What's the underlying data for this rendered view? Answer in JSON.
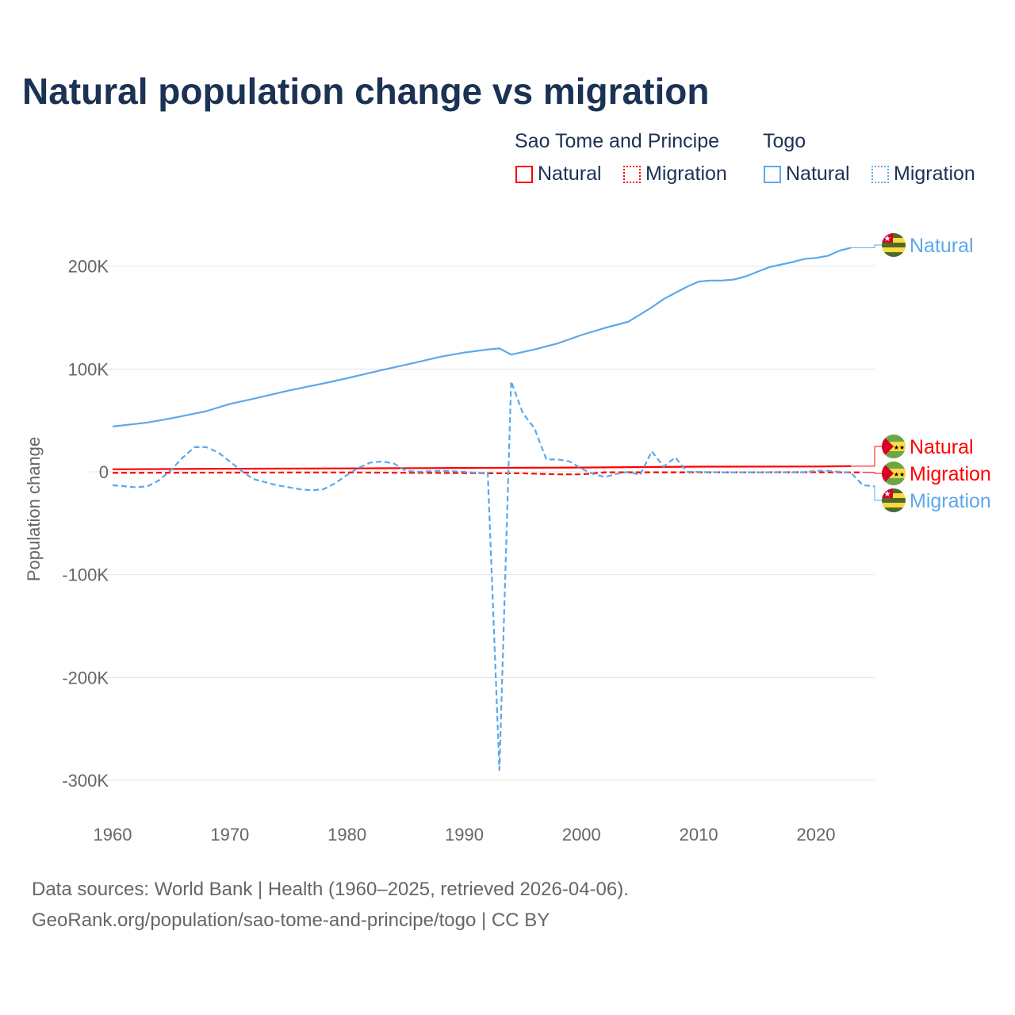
{
  "title": "Natural population change vs migration",
  "legend": {
    "groups": [
      {
        "name": "Sao Tome and Principe",
        "items": [
          {
            "label": "Natural",
            "style": "solid"
          },
          {
            "label": "Migration",
            "style": "dotted"
          }
        ],
        "color": "#ff0000"
      },
      {
        "name": "Togo",
        "items": [
          {
            "label": "Natural",
            "style": "solid"
          },
          {
            "label": "Migration",
            "style": "dotted"
          }
        ],
        "color": "#5da8ea"
      }
    ]
  },
  "footer": {
    "line1": "Data sources: World Bank | Health (1960–2025, retrieved 2026-04-06).",
    "line2": "GeoRank.org/population/sao-tome-and-principe/togo | CC BY"
  },
  "chart_data": {
    "type": "line",
    "title": "Natural population change vs migration",
    "xlabel": "",
    "ylabel": "Population change",
    "xlim": [
      1960,
      2025
    ],
    "ylim": [
      -300000,
      230000
    ],
    "xticks": [
      1960,
      1970,
      1980,
      1990,
      2000,
      2010,
      2020
    ],
    "xtick_labels": [
      "1960",
      "1970",
      "1980",
      "1990",
      "2000",
      "2010",
      "2020"
    ],
    "yticks": [
      200000,
      100000,
      0,
      -100000,
      -200000,
      -300000
    ],
    "ytick_labels": [
      "200K",
      "100K",
      "0",
      "-100K",
      "-200K",
      "-300K"
    ],
    "grid": true,
    "series": [
      {
        "name": "Togo Natural",
        "label": "Natural",
        "color": "#5da8ea",
        "dash": "solid",
        "x": [
          1960,
          1963,
          1965,
          1968,
          1970,
          1972,
          1975,
          1978,
          1980,
          1983,
          1985,
          1988,
          1990,
          1992,
          1993,
          1994,
          1996,
          1998,
          2000,
          2002,
          2004,
          2006,
          2007,
          2008,
          2009,
          2010,
          2011,
          2012,
          2013,
          2014,
          2016,
          2018,
          2019,
          2020,
          2021,
          2022,
          2023
        ],
        "y": [
          44000,
          48000,
          52000,
          59000,
          66000,
          71000,
          79000,
          86000,
          91000,
          99000,
          104000,
          112000,
          116000,
          119000,
          120000,
          114000,
          119000,
          125000,
          133000,
          140000,
          146000,
          160000,
          168000,
          174000,
          180000,
          185000,
          186000,
          186000,
          187000,
          190000,
          199000,
          204000,
          207000,
          208000,
          210000,
          215000,
          218000
        ]
      },
      {
        "name": "Sao Tome and Principe Natural",
        "label": "Natural",
        "color": "#ff0000",
        "dash": "solid",
        "x": [
          1960,
          1970,
          1980,
          1990,
          2000,
          2010,
          2020,
          2023
        ],
        "y": [
          2500,
          3000,
          3300,
          3800,
          4200,
          5000,
          5200,
          5500
        ]
      },
      {
        "name": "Sao Tome and Principe Migration",
        "label": "Migration",
        "color": "#ff0000",
        "dash": "dashed",
        "x": [
          1960,
          1970,
          1980,
          1990,
          1995,
          1998,
          2000,
          2002,
          2010,
          2020,
          2024
        ],
        "y": [
          -1000,
          -800,
          -600,
          -1200,
          -1500,
          -2500,
          -2500,
          -500,
          -500,
          -400,
          -600
        ]
      },
      {
        "name": "Togo Migration",
        "label": "Migration",
        "color": "#5da8ea",
        "dash": "dashed",
        "x": [
          1960,
          1962,
          1963,
          1964,
          1965,
          1966,
          1967,
          1968,
          1969,
          1970,
          1971,
          1972,
          1974,
          1976,
          1977,
          1978,
          1979,
          1980,
          1981,
          1982,
          1983,
          1984,
          1985,
          1986,
          1988,
          1990,
          1991,
          1992,
          1993,
          1994,
          1995,
          1996,
          1997,
          1998,
          1999,
          2000,
          2001,
          2002,
          2003,
          2004,
          2005,
          2006,
          2007,
          2008,
          2009,
          2012,
          2015,
          2019,
          2020,
          2021,
          2022,
          2023,
          2024,
          2025
        ],
        "y": [
          -13000,
          -15000,
          -14000,
          -8000,
          2000,
          14000,
          24000,
          24000,
          19000,
          10000,
          1000,
          -7000,
          -13000,
          -17000,
          -18000,
          -17000,
          -11000,
          -3000,
          4000,
          9000,
          10000,
          8000,
          1000,
          0,
          1000,
          0,
          -1000,
          -1000,
          -290000,
          88000,
          57000,
          42000,
          12000,
          12000,
          10000,
          3000,
          -2000,
          -5000,
          -2000,
          0,
          -3000,
          20000,
          5000,
          14000,
          0,
          -500,
          -500,
          -500,
          1000,
          1000,
          0,
          -1000,
          -13000,
          -14000
        ]
      }
    ],
    "end_labels": [
      {
        "label": "Natural",
        "series": "Togo Natural",
        "flag": "togo"
      },
      {
        "label": "Natural",
        "series": "Sao Tome and Principe Natural",
        "flag": "sao-tome-and-principe"
      },
      {
        "label": "Migration",
        "series": "Sao Tome and Principe Migration",
        "flag": "sao-tome-and-principe"
      },
      {
        "label": "Migration",
        "series": "Togo Migration",
        "flag": "togo"
      }
    ]
  }
}
